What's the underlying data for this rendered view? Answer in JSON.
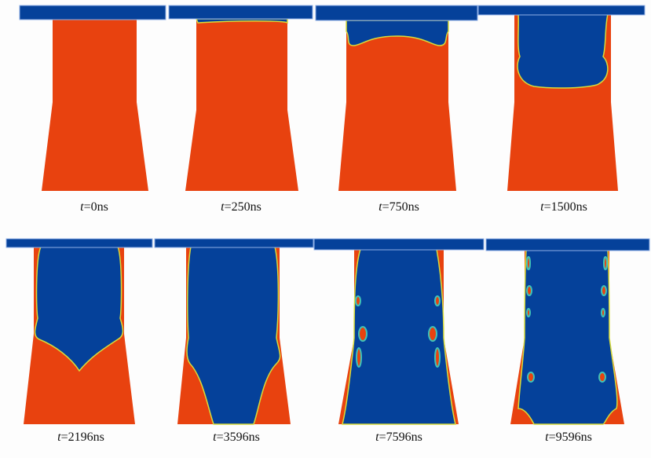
{
  "colors": {
    "solid": "#E8420F",
    "void": "#05419A",
    "interface_outer": "#3FC3B8",
    "interface_inner": "#D8DC3A"
  },
  "panels": [
    {
      "t": "t",
      "rest": "=0ns"
    },
    {
      "t": "t",
      "rest": "=250ns"
    },
    {
      "t": "t",
      "rest": "=750ns"
    },
    {
      "t": "t",
      "rest": "=1500ns"
    },
    {
      "t": "t",
      "rest": "=2196ns"
    },
    {
      "t": "t",
      "rest": "=3596ns"
    },
    {
      "t": "t",
      "rest": "=7596ns"
    },
    {
      "t": "t",
      "rest": "=9596ns"
    }
  ]
}
